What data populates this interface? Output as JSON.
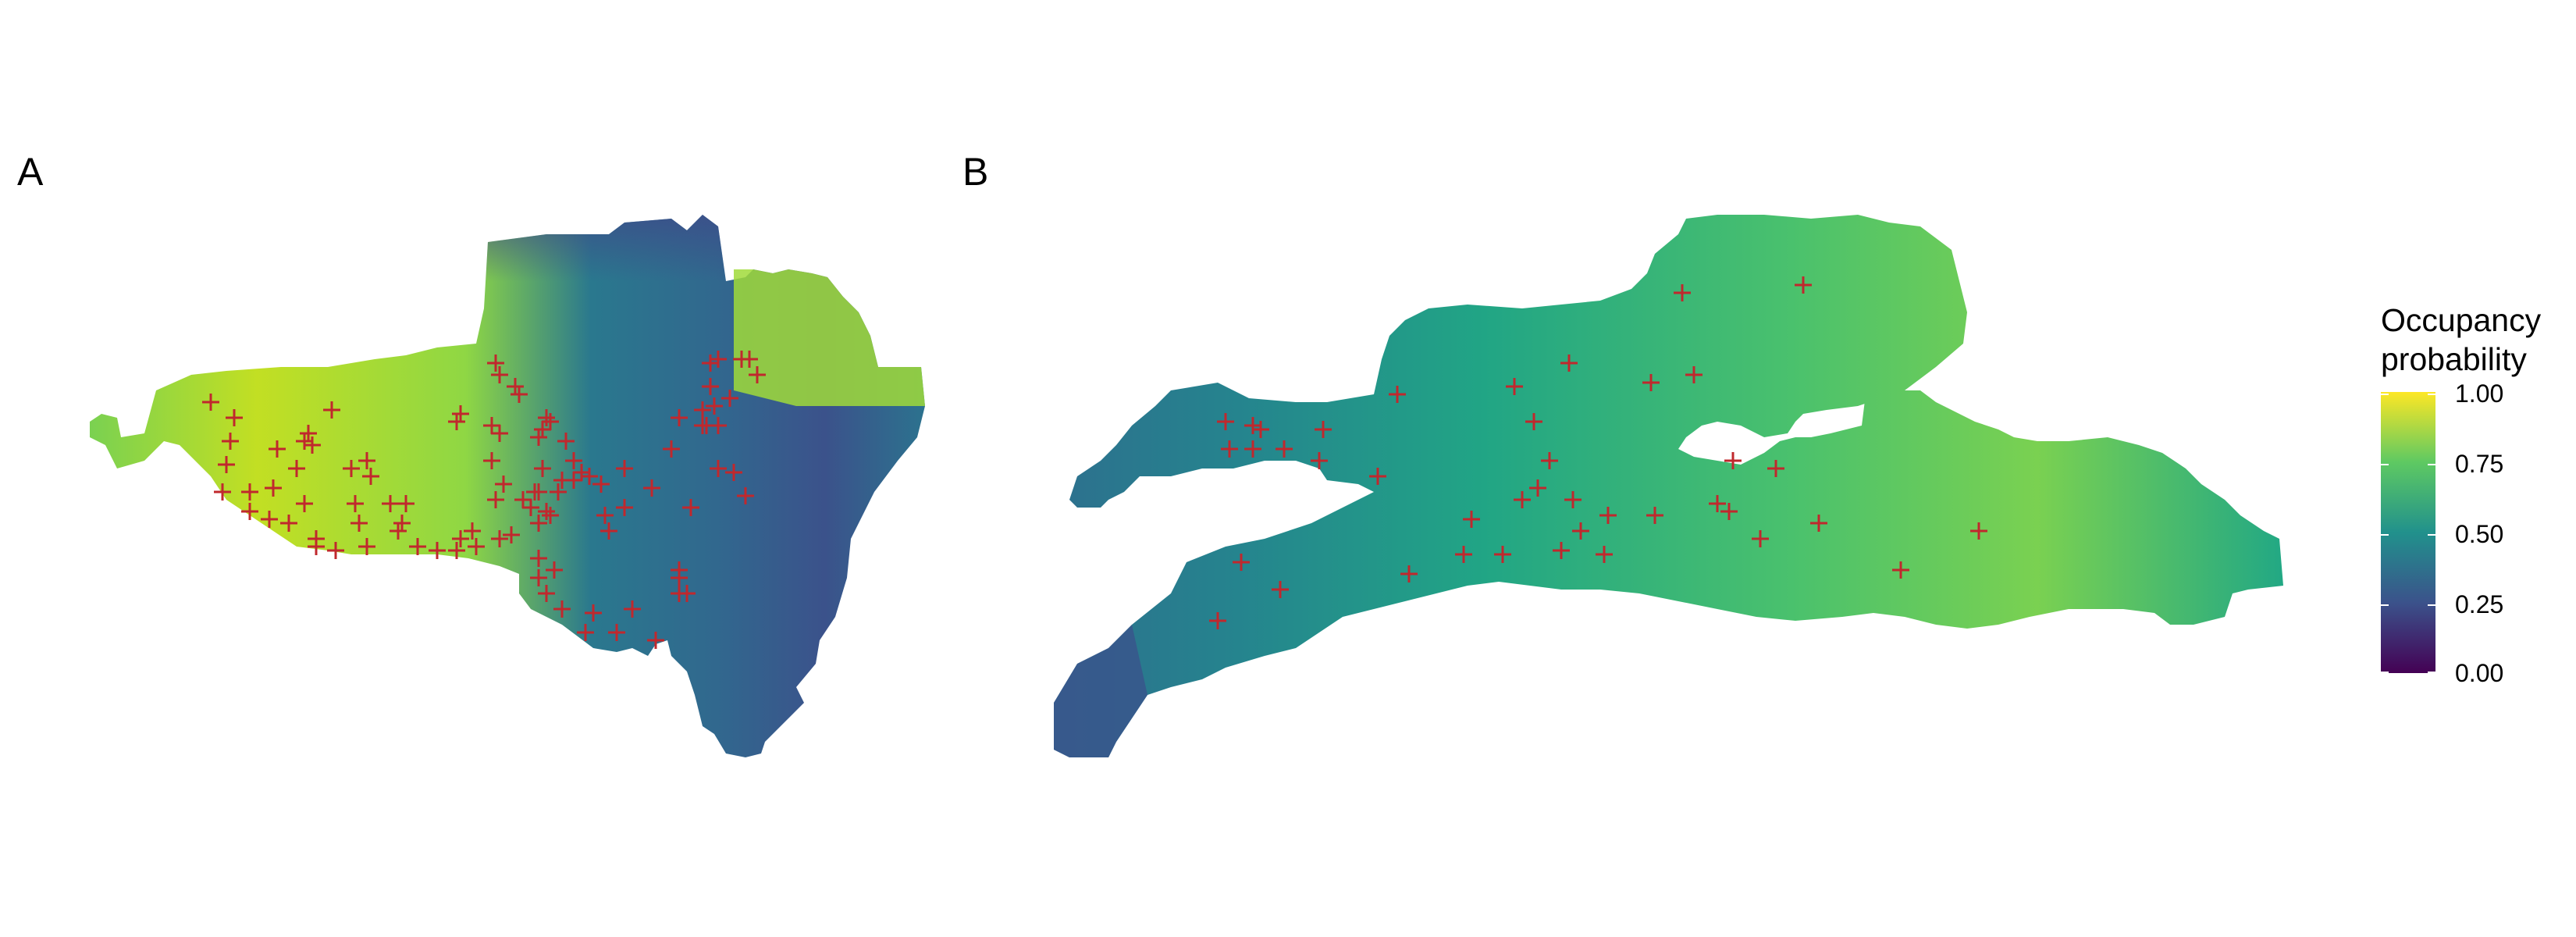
{
  "panels": [
    {
      "label": "A"
    },
    {
      "label": "B"
    }
  ],
  "legend": {
    "title_line1": "Occupancy",
    "title_line2": "probability",
    "ticks": [
      "1.00",
      "0.75",
      "0.50",
      "0.25",
      "0.00"
    ],
    "color_scale": "viridis",
    "colors": [
      "#fde725",
      "#5ec962",
      "#21918c",
      "#3b528b",
      "#440154"
    ]
  },
  "marker": {
    "symbol": "+",
    "color": "#c0282d"
  },
  "colors": {
    "background": "#ffffff"
  }
}
